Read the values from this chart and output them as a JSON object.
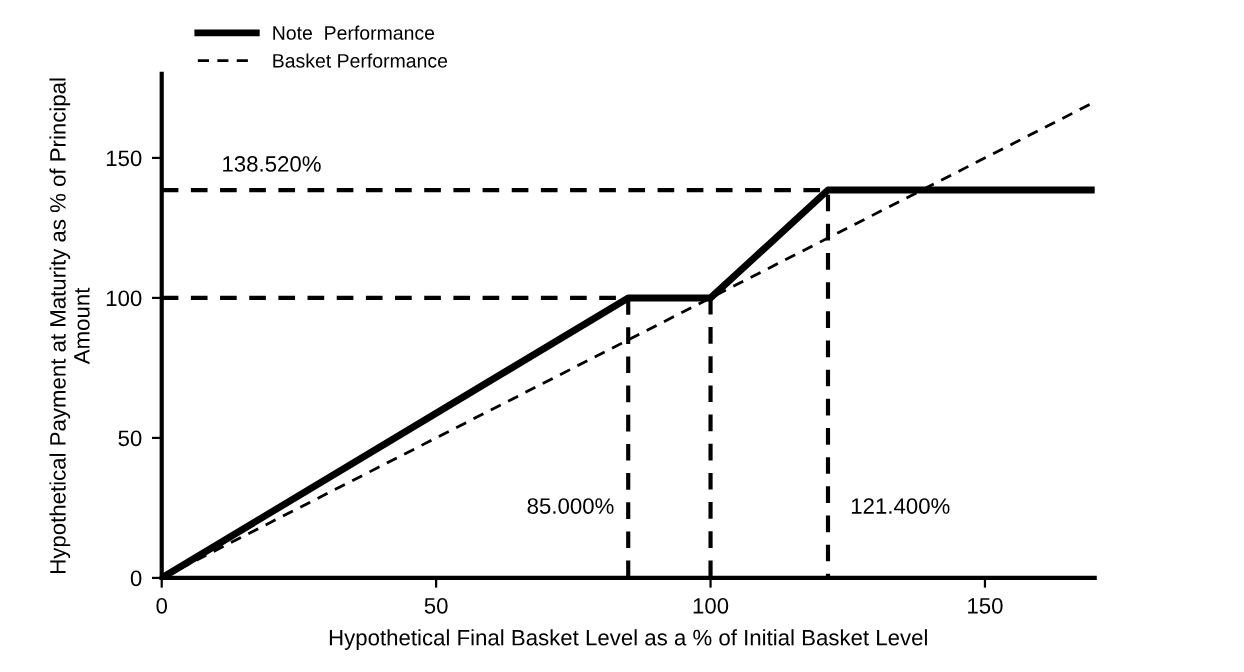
{
  "chart_data": {
    "type": "line",
    "xlabel": "Hypothetical Final Basket Level as a % of Initial Basket Level",
    "ylabel": "Hypothetical Payment at Maturity as % of Principal\nAmount",
    "xlim": [
      0,
      170
    ],
    "ylim": [
      0,
      180
    ],
    "xticks": [
      0,
      50,
      100,
      150
    ],
    "yticks": [
      0,
      50,
      100,
      150
    ],
    "grid": false,
    "legend": "top left",
    "marker": "none",
    "series": [
      {
        "name": "Note  Performance",
        "color": "#000000",
        "line_style": "solid",
        "x": [
          0,
          85,
          100,
          121.4,
          170
        ],
        "values": [
          0,
          100,
          100,
          138.52,
          138.52
        ]
      },
      {
        "name": "Basket Performance",
        "color": "#000000",
        "line_style": "dashed",
        "x": [
          0,
          170
        ],
        "values": [
          0,
          170
        ]
      },
      {
        "color": "#000000",
        "line_style": "dashed",
        "x": [
          0,
          121.4,
          121.4
        ],
        "values": [
          138.52,
          138.52,
          0
        ]
      },
      {
        "color": "#000000",
        "line_style": "dashed",
        "x": [
          0,
          85,
          85
        ],
        "values": [
          100,
          100,
          0
        ]
      },
      {
        "color": "#000000",
        "line_style": "dashed",
        "x": [
          100,
          100
        ],
        "values": [
          100,
          0
        ]
      }
    ],
    "annotations": [
      {
        "text": "138.520%",
        "x": 20,
        "y": 138.52
      },
      {
        "text": "85.000%",
        "x": 85,
        "y": 25
      },
      {
        "text": "121.400%",
        "x": 121.4,
        "y": 25
      }
    ]
  }
}
